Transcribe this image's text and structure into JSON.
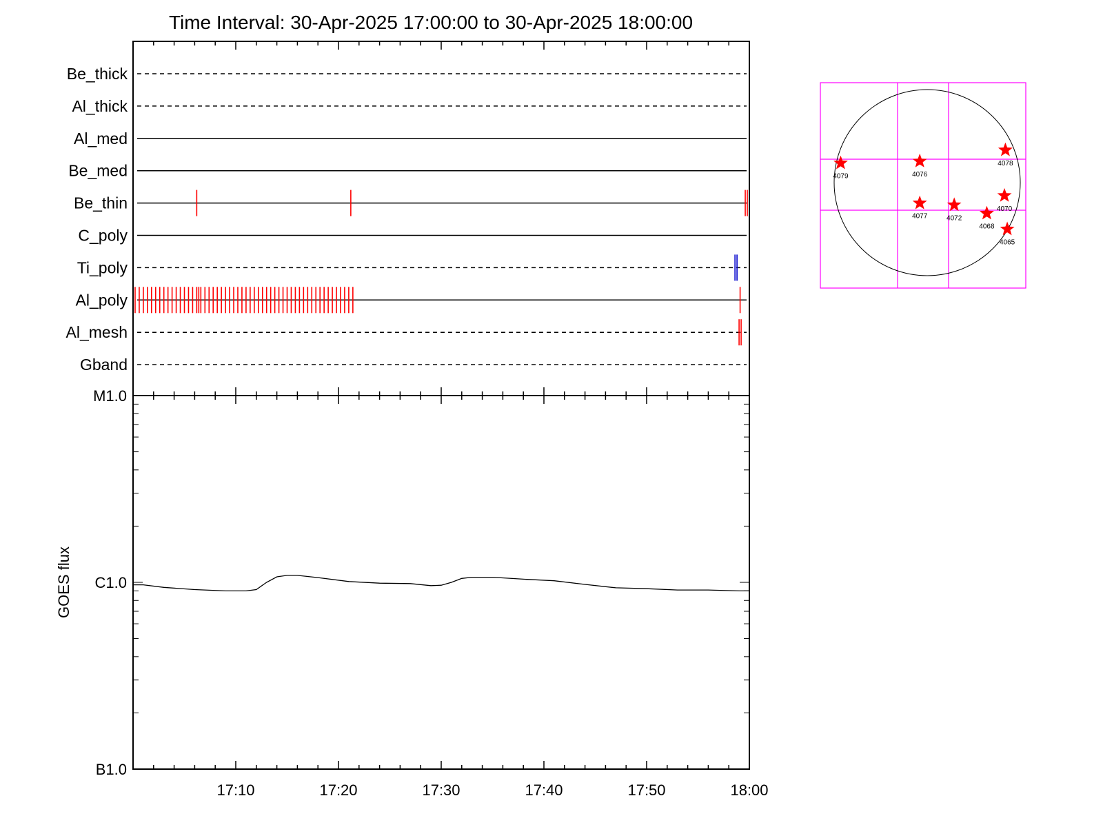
{
  "chart_data": [
    {
      "type": "timeline",
      "title": "Time Interval: 30-Apr-2025 17:00:00 to 30-Apr-2025 18:00:00",
      "x_range": [
        "17:00",
        "18:00"
      ],
      "rows": [
        {
          "name": "Be_thick",
          "line": "dashed",
          "events": []
        },
        {
          "name": "Al_thick",
          "line": "dashed",
          "events": []
        },
        {
          "name": "Al_med",
          "line": "solid",
          "events": []
        },
        {
          "name": "Be_med",
          "line": "solid",
          "events": []
        },
        {
          "name": "Be_thin",
          "line": "solid",
          "events": [
            {
              "t": 6.2,
              "color": "#ff0000"
            },
            {
              "t": 21.2,
              "color": "#ff0000"
            },
            {
              "t": 59.6,
              "color": "#ff0000"
            },
            {
              "t": 59.8,
              "color": "#ff0000"
            }
          ]
        },
        {
          "name": "C_poly",
          "line": "solid",
          "events": []
        },
        {
          "name": "Ti_poly",
          "line": "dashed",
          "events": [
            {
              "t": 58.6,
              "color": "#0000cc"
            },
            {
              "t": 58.8,
              "color": "#0000cc"
            }
          ]
        },
        {
          "name": "Al_poly",
          "line": "solid",
          "events": [],
          "event_series": {
            "start": 0.2,
            "end": 21.5,
            "step": 0.4,
            "color": "#ff0000"
          },
          "extra_events": [
            {
              "t": 6.4,
              "color": "#ff0000"
            },
            {
              "t": 59.1,
              "color": "#ff0000"
            }
          ]
        },
        {
          "name": "Al_mesh",
          "line": "dashed",
          "events": [
            {
              "t": 59.0,
              "color": "#ff0000"
            },
            {
              "t": 59.2,
              "color": "#ff0000"
            }
          ]
        },
        {
          "name": "Gband",
          "line": "dashed",
          "events": []
        }
      ]
    },
    {
      "type": "line",
      "ylabel": "GOES flux",
      "yscale": "log",
      "ylim": [
        1e-07,
        1e-05
      ],
      "ytick_labels": [
        {
          "value": 1e-05,
          "label": "M1.0"
        },
        {
          "value": 1e-06,
          "label": "C1.0"
        },
        {
          "value": 1e-07,
          "label": "B1.0"
        }
      ],
      "x_range": [
        "17:00",
        "18:00"
      ],
      "xtick_labels": [
        "17:10",
        "17:20",
        "17:30",
        "17:40",
        "17:50",
        "18:00"
      ],
      "series": [
        {
          "color": "#000000",
          "x": [
            "17:00",
            "17:01",
            "17:03",
            "17:06",
            "17:09",
            "17:11",
            "17:12",
            "17:13",
            "17:14",
            "17:15",
            "17:16",
            "17:18",
            "17:21",
            "17:24",
            "17:27",
            "17:29",
            "17:30",
            "17:31",
            "17:32",
            "17:33",
            "17:35",
            "17:38",
            "17:41",
            "17:44",
            "17:47",
            "17:50",
            "17:53",
            "17:56",
            "17:59",
            "18:00"
          ],
          "y": [
            9.7e-07,
            9.7e-07,
            9.4e-07,
            9.15e-07,
            9e-07,
            9e-07,
            9.15e-07,
            1e-06,
            1.07e-06,
            1.09e-06,
            1.09e-06,
            1.06e-06,
            1.01e-06,
            9.9e-07,
            9.85e-07,
            9.6e-07,
            9.65e-07,
            1e-06,
            1.05e-06,
            1.065e-06,
            1.065e-06,
            1.04e-06,
            1.02e-06,
            9.75e-07,
            9.35e-07,
            9.25e-07,
            9.1e-07,
            9.1e-07,
            9e-07,
            9e-07
          ]
        }
      ]
    },
    {
      "type": "scatter",
      "subject": "solar disk active regions",
      "points": [
        {
          "label": "4079",
          "x": -0.93,
          "y": 0.21
        },
        {
          "label": "4076",
          "x": -0.08,
          "y": 0.23
        },
        {
          "label": "4078",
          "x": 0.84,
          "y": 0.35
        },
        {
          "label": "4077",
          "x": -0.08,
          "y": -0.22
        },
        {
          "label": "4072",
          "x": 0.29,
          "y": -0.24
        },
        {
          "label": "4070",
          "x": 0.83,
          "y": -0.14
        },
        {
          "label": "4068",
          "x": 0.64,
          "y": -0.33
        },
        {
          "label": "4065",
          "x": 0.86,
          "y": -0.5
        }
      ],
      "colors": {
        "marker": "#ff0000",
        "grid": "#ff00ff",
        "disk": "#000000"
      }
    }
  ]
}
